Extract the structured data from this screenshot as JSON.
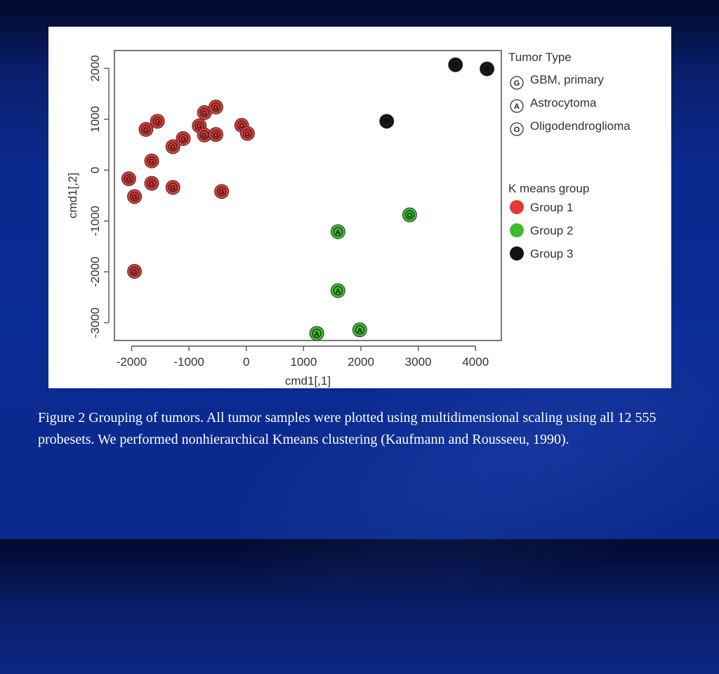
{
  "caption": "Figure 2 Grouping of  tumors. All tumor samples were plotted using multidimensional scaling using all 12 555 probesets. We performed nonhierarchical Kmeans clustering (Kaufmann and Rousseeu, 1990).",
  "chart_data": {
    "type": "scatter",
    "xlabel": "cmd1[,1]",
    "ylabel": "cmd1[,2]",
    "xlim": [
      -2300,
      4450
    ],
    "ylim": [
      -3350,
      2350
    ],
    "xticks": [
      -2000,
      -1000,
      0,
      1000,
      2000,
      3000,
      4000
    ],
    "yticks": [
      -3000,
      -2000,
      -1000,
      0,
      1000,
      2000
    ],
    "grid": false,
    "legend_position": "right",
    "legend": {
      "tumor_type_title": "Tumor Type",
      "tumor_types": [
        {
          "symbol": "G",
          "label": "GBM, primary"
        },
        {
          "symbol": "A",
          "label": "Astrocytoma"
        },
        {
          "symbol": "O",
          "label": "Oligodendroglioma"
        }
      ],
      "kmeans_title": "K means group",
      "groups": [
        {
          "label": "Group 1",
          "color": "#e23a34"
        },
        {
          "label": "Group 2",
          "color": "#3cbd2c"
        },
        {
          "label": "Group 3",
          "color": "#111111"
        }
      ]
    },
    "series": [
      {
        "name": "Group 1",
        "color": "#e23a34",
        "points": [
          {
            "x": -1750,
            "y": 800,
            "label": "G"
          },
          {
            "x": -1550,
            "y": 960,
            "label": "G"
          },
          {
            "x": -1650,
            "y": 180,
            "label": "G"
          },
          {
            "x": -2050,
            "y": -170,
            "label": "G"
          },
          {
            "x": -1950,
            "y": -520,
            "label": "G"
          },
          {
            "x": -1650,
            "y": -260,
            "label": "G"
          },
          {
            "x": -1280,
            "y": -340,
            "label": "G"
          },
          {
            "x": -1280,
            "y": 460,
            "label": "G"
          },
          {
            "x": -1100,
            "y": 620,
            "label": "G"
          },
          {
            "x": -820,
            "y": 870,
            "label": "G"
          },
          {
            "x": -730,
            "y": 1130,
            "label": "G"
          },
          {
            "x": -530,
            "y": 1240,
            "label": "G"
          },
          {
            "x": -730,
            "y": 690,
            "label": "G"
          },
          {
            "x": -530,
            "y": 700,
            "label": "G"
          },
          {
            "x": -430,
            "y": -420,
            "label": "G"
          },
          {
            "x": -80,
            "y": 880,
            "label": "G"
          },
          {
            "x": 20,
            "y": 720,
            "label": "G"
          },
          {
            "x": -1950,
            "y": -1990,
            "label": "G"
          }
        ]
      },
      {
        "name": "Group 2",
        "color": "#3cbd2c",
        "points": [
          {
            "x": 2850,
            "y": -880,
            "label": "O"
          },
          {
            "x": 1600,
            "y": -1210,
            "label": "A"
          },
          {
            "x": 1600,
            "y": -2370,
            "label": "A"
          },
          {
            "x": 1230,
            "y": -3210,
            "label": "A"
          },
          {
            "x": 1980,
            "y": -3140,
            "label": "A"
          }
        ]
      },
      {
        "name": "Group 3",
        "color": "#111111",
        "points": [
          {
            "x": 2450,
            "y": 960,
            "label": "A"
          },
          {
            "x": 3650,
            "y": 2070,
            "label": "O"
          },
          {
            "x": 4200,
            "y": 1990,
            "label": "O"
          }
        ]
      }
    ]
  }
}
